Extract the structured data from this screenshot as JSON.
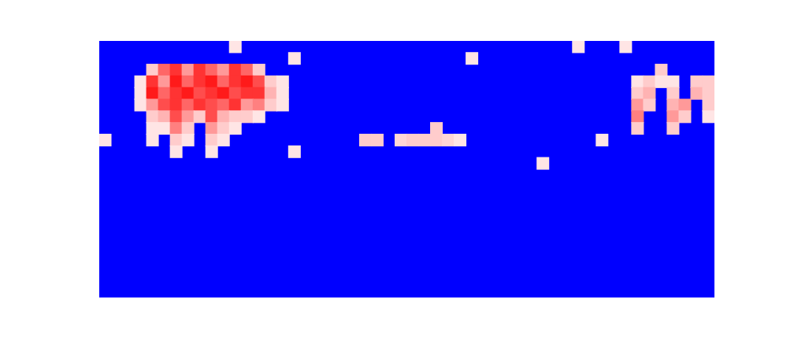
{
  "chart_data": {
    "type": "heatmap",
    "xlim": [
      -0.5,
      51.5
    ],
    "ylim": [
      -0.5,
      21.5
    ],
    "tick_labels": false,
    "grid": false,
    "zlim": [
      0,
      1
    ],
    "cells": [
      [
        4,
        19,
        0.6
      ],
      [
        5,
        19,
        0.8
      ],
      [
        6,
        19,
        0.9
      ],
      [
        7,
        19,
        0.7
      ],
      [
        8,
        19,
        0.9
      ],
      [
        9,
        19,
        0.8
      ],
      [
        10,
        19,
        0.7
      ],
      [
        11,
        19,
        0.9
      ],
      [
        12,
        19,
        0.8
      ],
      [
        13,
        19,
        0.6
      ],
      [
        3,
        18,
        0.55
      ],
      [
        4,
        18,
        0.9
      ],
      [
        5,
        18,
        0.7
      ],
      [
        6,
        18,
        0.95
      ],
      [
        7,
        18,
        0.8
      ],
      [
        8,
        18,
        0.9
      ],
      [
        9,
        18,
        0.95
      ],
      [
        10,
        18,
        0.8
      ],
      [
        11,
        18,
        0.9
      ],
      [
        12,
        18,
        0.95
      ],
      [
        13,
        18,
        0.85
      ],
      [
        14,
        18,
        0.6
      ],
      [
        15,
        18,
        0.55
      ],
      [
        3,
        17,
        0.55
      ],
      [
        4,
        17,
        0.95
      ],
      [
        5,
        17,
        0.8
      ],
      [
        6,
        17,
        0.9
      ],
      [
        7,
        17,
        0.95
      ],
      [
        8,
        17,
        0.85
      ],
      [
        9,
        17,
        0.9
      ],
      [
        10,
        17,
        0.95
      ],
      [
        11,
        17,
        0.85
      ],
      [
        12,
        17,
        0.9
      ],
      [
        13,
        17,
        0.9
      ],
      [
        14,
        17,
        0.65
      ],
      [
        15,
        17,
        0.55
      ],
      [
        3,
        16,
        0.55
      ],
      [
        4,
        16,
        0.7
      ],
      [
        5,
        16,
        0.85
      ],
      [
        6,
        16,
        0.9
      ],
      [
        7,
        16,
        0.8
      ],
      [
        8,
        16,
        0.9
      ],
      [
        9,
        16,
        0.85
      ],
      [
        10,
        16,
        0.8
      ],
      [
        11,
        16,
        0.9
      ],
      [
        12,
        16,
        0.7
      ],
      [
        13,
        16,
        0.75
      ],
      [
        14,
        16,
        0.6
      ],
      [
        15,
        16,
        0.55
      ],
      [
        4,
        15,
        0.6
      ],
      [
        5,
        15,
        0.65
      ],
      [
        6,
        15,
        0.85
      ],
      [
        7,
        15,
        0.7
      ],
      [
        8,
        15,
        0.6
      ],
      [
        9,
        15,
        0.85
      ],
      [
        10,
        15,
        0.65
      ],
      [
        11,
        15,
        0.6
      ],
      [
        12,
        15,
        0.6
      ],
      [
        13,
        15,
        0.55
      ],
      [
        4,
        14,
        0.55
      ],
      [
        5,
        14,
        0.55
      ],
      [
        6,
        14,
        0.75
      ],
      [
        7,
        14,
        0.6
      ],
      [
        9,
        14,
        0.7
      ],
      [
        10,
        14,
        0.6
      ],
      [
        11,
        14,
        0.55
      ],
      [
        4,
        13,
        0.55
      ],
      [
        6,
        13,
        0.6
      ],
      [
        7,
        13,
        0.55
      ],
      [
        9,
        13,
        0.6
      ],
      [
        10,
        13,
        0.55
      ],
      [
        6,
        12,
        0.55
      ],
      [
        9,
        12,
        0.55
      ],
      [
        22,
        13,
        0.6
      ],
      [
        23,
        13,
        0.6
      ],
      [
        25,
        13,
        0.58
      ],
      [
        26,
        13,
        0.6
      ],
      [
        27,
        13,
        0.6
      ],
      [
        28,
        13,
        0.6
      ],
      [
        29,
        13,
        0.58
      ],
      [
        30,
        13,
        0.55
      ],
      [
        28,
        14,
        0.6
      ],
      [
        42,
        13,
        0.55
      ],
      [
        47,
        19,
        0.6
      ],
      [
        45,
        18,
        0.55
      ],
      [
        46,
        18,
        0.6
      ],
      [
        47,
        18,
        0.55
      ],
      [
        48,
        18,
        0.55
      ],
      [
        50,
        18,
        0.6
      ],
      [
        51,
        18,
        0.6
      ],
      [
        45,
        17,
        0.6
      ],
      [
        46,
        17,
        0.65
      ],
      [
        48,
        17,
        0.6
      ],
      [
        50,
        17,
        0.65
      ],
      [
        51,
        17,
        0.6
      ],
      [
        45,
        16,
        0.7
      ],
      [
        46,
        16,
        0.6
      ],
      [
        48,
        16,
        0.65
      ],
      [
        49,
        16,
        0.7
      ],
      [
        51,
        16,
        0.6
      ],
      [
        45,
        15,
        0.75
      ],
      [
        48,
        15,
        0.7
      ],
      [
        49,
        15,
        0.6
      ],
      [
        51,
        15,
        0.55
      ],
      [
        45,
        14,
        0.6
      ],
      [
        48,
        14,
        0.6
      ],
      [
        11,
        21,
        0.55
      ],
      [
        40,
        21,
        0.55
      ],
      [
        44,
        21,
        0.55
      ],
      [
        16,
        20,
        0.55
      ],
      [
        31,
        20,
        0.55
      ],
      [
        37,
        11,
        0.55
      ],
      [
        0,
        13,
        0.55
      ],
      [
        16,
        12,
        0.55
      ]
    ]
  }
}
